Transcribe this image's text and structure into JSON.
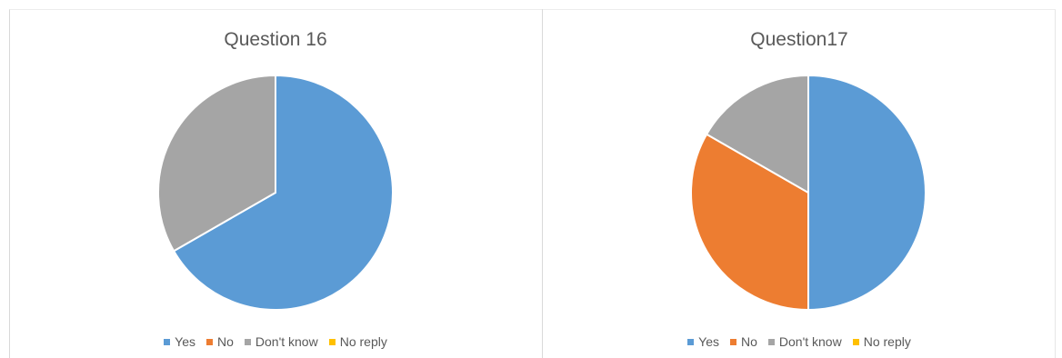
{
  "colors": {
    "Yes": "#5b9bd5",
    "No": "#ed7d31",
    "Don't know": "#a5a5a5",
    "No reply": "#ffc000"
  },
  "chart_data": [
    {
      "type": "pie",
      "title": "Question 16",
      "categories": [
        "Yes",
        "No",
        "Don't know",
        "No reply"
      ],
      "values": [
        66.7,
        0,
        33.3,
        0
      ],
      "legend": "bottom"
    },
    {
      "type": "pie",
      "title": "Question17",
      "categories": [
        "Yes",
        "No",
        "Don't know",
        "No reply"
      ],
      "values": [
        50,
        33.3,
        16.7,
        0
      ],
      "legend": "bottom"
    }
  ]
}
